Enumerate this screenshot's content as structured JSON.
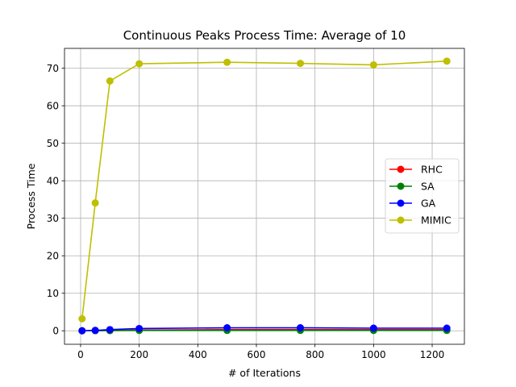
{
  "chart_data": {
    "type": "line",
    "title": "Continuous Peaks Process Time: Average of 10",
    "xlabel": "# of Iterations",
    "ylabel": "Process Time",
    "xlim": [
      -55,
      1310
    ],
    "ylim": [
      -3.6,
      75.3
    ],
    "xticks": [
      0,
      200,
      400,
      600,
      800,
      1000,
      1200
    ],
    "yticks": [
      0,
      10,
      20,
      30,
      40,
      50,
      60,
      70
    ],
    "grid": true,
    "legend_position": "center-right",
    "x": [
      5,
      50,
      100,
      200,
      500,
      750,
      1000,
      1250
    ],
    "series": [
      {
        "name": "RHC",
        "color": "#ff0000",
        "values": [
          0.0,
          0.05,
          0.1,
          0.2,
          0.3,
          0.3,
          0.3,
          0.3
        ]
      },
      {
        "name": "SA",
        "color": "#008000",
        "values": [
          0.0,
          0.05,
          0.05,
          0.1,
          0.1,
          0.1,
          0.1,
          0.1
        ]
      },
      {
        "name": "GA",
        "color": "#0000ff",
        "values": [
          0.0,
          0.1,
          0.3,
          0.6,
          0.8,
          0.8,
          0.7,
          0.7
        ]
      },
      {
        "name": "MIMIC",
        "color": "#bfbf00",
        "values": [
          3.2,
          34.1,
          66.6,
          71.2,
          71.6,
          71.3,
          70.9,
          71.9
        ]
      }
    ]
  }
}
